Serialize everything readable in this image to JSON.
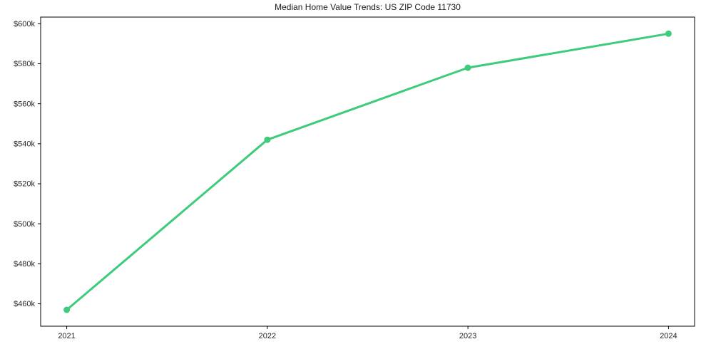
{
  "chart_data": {
    "type": "line",
    "title": "Median Home Value Trends: US ZIP Code 11730",
    "categories": [
      "2021",
      "2022",
      "2023",
      "2024"
    ],
    "x": [
      2021,
      2022,
      2023,
      2024
    ],
    "series": [
      {
        "name": "Median Home Value",
        "values": [
          457000,
          542000,
          578000,
          595000
        ]
      }
    ],
    "xlabel": "",
    "ylabel": "",
    "xlim": [
      2020.87,
      2024.13
    ],
    "ylim": [
      448800,
      603300
    ],
    "x_ticks": [
      {
        "value": 2021,
        "label": "2021"
      },
      {
        "value": 2022,
        "label": "2022"
      },
      {
        "value": 2023,
        "label": "2023"
      },
      {
        "value": 2024,
        "label": "2024"
      }
    ],
    "y_ticks": [
      {
        "value": 460000,
        "label": "$460k"
      },
      {
        "value": 480000,
        "label": "$480k"
      },
      {
        "value": 500000,
        "label": "$500k"
      },
      {
        "value": 520000,
        "label": "$520k"
      },
      {
        "value": 540000,
        "label": "$540k"
      },
      {
        "value": 560000,
        "label": "$560k"
      },
      {
        "value": 580000,
        "label": "$580k"
      },
      {
        "value": 600000,
        "label": "$600k"
      }
    ],
    "grid": false,
    "legend_position": "none",
    "colors": {
      "line": "#3ecb7b",
      "marker": "#3ecb7b",
      "axis": "#000000",
      "tick_text": "#262626",
      "title_text": "#1a1a1a",
      "background": "#ffffff"
    }
  }
}
